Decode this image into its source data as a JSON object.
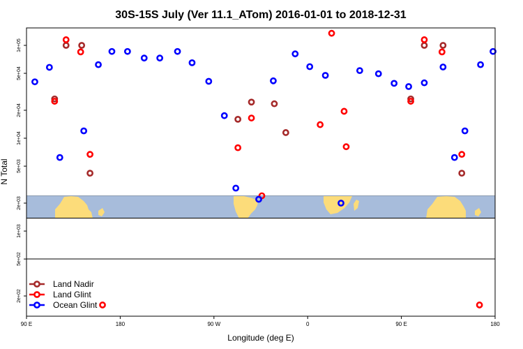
{
  "chart_data": {
    "type": "scatter",
    "title": "30S-15S July (Ver 11.1_ATom)   2016-01-01 to 2018-12-31",
    "xlabel": "Longitude (deg E)",
    "ylabel": "N Total",
    "xlim": [
      90,
      540
    ],
    "ylog": true,
    "ylim": [
      120,
      200000
    ],
    "x_ticks": [
      {
        "value": 90,
        "label": "90 E"
      },
      {
        "value": 180,
        "label": "180"
      },
      {
        "value": 270,
        "label": "90 W"
      },
      {
        "value": 360,
        "label": "0"
      },
      {
        "value": 450,
        "label": "90 E"
      },
      {
        "value": 540,
        "label": "180"
      }
    ],
    "y_ticks": [
      {
        "value": 200,
        "label": "2e+02"
      },
      {
        "value": 500,
        "label": "5e+02"
      },
      {
        "value": 1000,
        "label": "1e+03"
      },
      {
        "value": 2000,
        "label": "2e+03"
      },
      {
        "value": 5000,
        "label": "5e+03"
      },
      {
        "value": 10000,
        "label": "1e+04"
      },
      {
        "value": 20000,
        "label": "2e+04"
      },
      {
        "value": 50000,
        "label": "5e+04"
      },
      {
        "value": 100000,
        "label": "1e+05"
      }
    ],
    "legend_position": "bottom-left",
    "series": [
      {
        "name": "Land Nadir",
        "color": "#a52a2a",
        "points": [
          [
            117,
            26500
          ],
          [
            128,
            100000
          ],
          [
            143,
            100000
          ],
          [
            151,
            4200
          ],
          [
            293,
            16000
          ],
          [
            306,
            24500
          ],
          [
            328,
            23500
          ],
          [
            339,
            11500
          ],
          [
            459,
            26500
          ],
          [
            472,
            100000
          ],
          [
            490,
            100000
          ],
          [
            508,
            4200
          ]
        ]
      },
      {
        "name": "Land Glint",
        "color": "#ff0000",
        "points": [
          [
            117,
            25000
          ],
          [
            128,
            115000
          ],
          [
            142,
            85000
          ],
          [
            151,
            6700
          ],
          [
            163,
            160
          ],
          [
            293,
            7900
          ],
          [
            306,
            16500
          ],
          [
            316,
            2400
          ],
          [
            372,
            14000
          ],
          [
            383,
            135000
          ],
          [
            395,
            19500
          ],
          [
            397,
            8100
          ],
          [
            459,
            25000
          ],
          [
            472,
            115000
          ],
          [
            489,
            85000
          ],
          [
            508,
            6700
          ],
          [
            525,
            160
          ]
        ]
      },
      {
        "name": "Ocean Glint",
        "color": "#0000ff",
        "points": [
          [
            98,
            40500
          ],
          [
            112,
            58000
          ],
          [
            122,
            6200
          ],
          [
            145,
            12000
          ],
          [
            159,
            62000
          ],
          [
            172,
            86000
          ],
          [
            187,
            86000
          ],
          [
            203,
            73000
          ],
          [
            218,
            73000
          ],
          [
            235,
            86000
          ],
          [
            249,
            65000
          ],
          [
            265,
            41000
          ],
          [
            280,
            17500
          ],
          [
            291,
            2900
          ],
          [
            313,
            2200
          ],
          [
            327,
            41500
          ],
          [
            348,
            81000
          ],
          [
            362,
            59000
          ],
          [
            377,
            47500
          ],
          [
            392,
            2000
          ],
          [
            410,
            53500
          ],
          [
            428,
            49500
          ],
          [
            443,
            39000
          ],
          [
            457,
            36000
          ],
          [
            472,
            39500
          ],
          [
            490,
            58500
          ],
          [
            501,
            6200
          ],
          [
            511,
            12000
          ],
          [
            526,
            62000
          ],
          [
            538,
            86000
          ]
        ]
      }
    ],
    "background_map": "world map strip (ocean and land) between y = 1500 and 2300"
  }
}
